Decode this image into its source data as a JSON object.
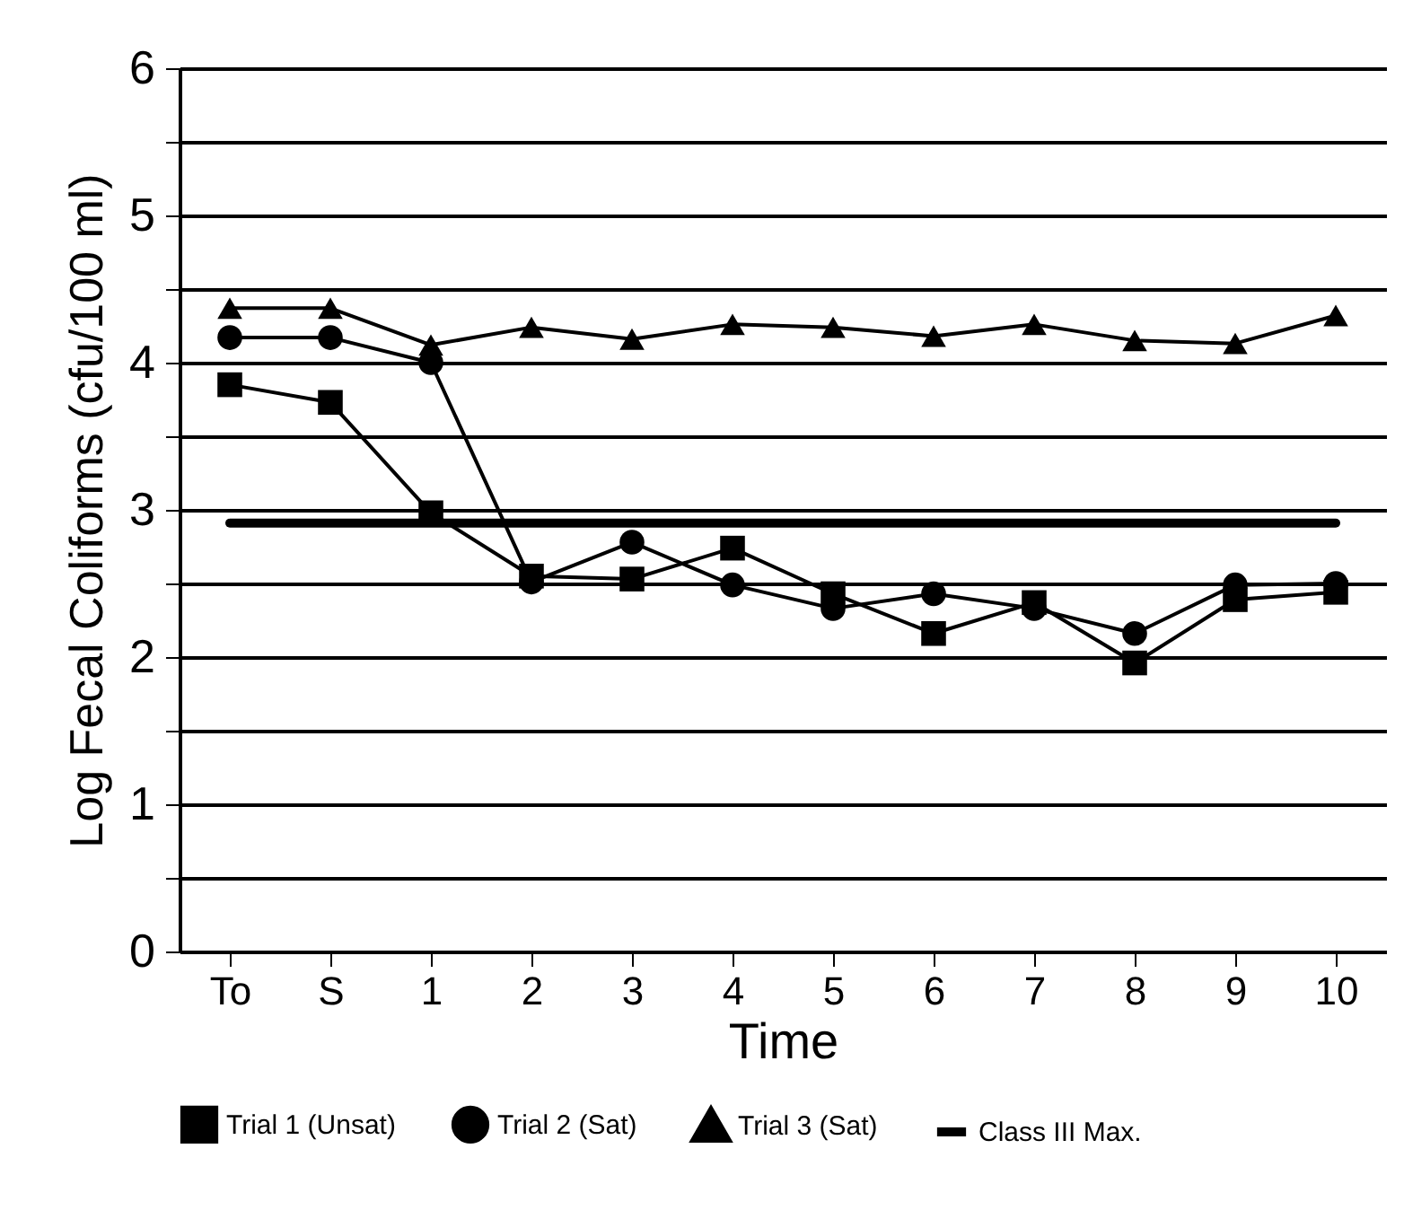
{
  "chart_data": {
    "type": "line",
    "xlabel": "Time",
    "ylabel": "Log Fecal Coliforms (cfu/100 ml)",
    "categories": [
      "To",
      "S",
      "1",
      "2",
      "3",
      "4",
      "5",
      "6",
      "7",
      "8",
      "9",
      "10"
    ],
    "series": [
      {
        "name": "Trial 1 (Unsat)",
        "color": "#000000",
        "marker": "square",
        "values": [
          3.85,
          3.73,
          2.98,
          2.55,
          2.53,
          2.74,
          2.43,
          2.16,
          2.37,
          1.96,
          2.39,
          2.44
        ]
      },
      {
        "name": "Trial 2 (Sat)",
        "color": "#000000",
        "marker": "circle",
        "values": [
          4.17,
          4.17,
          4.0,
          2.51,
          2.78,
          2.49,
          2.33,
          2.43,
          2.33,
          2.16,
          2.49,
          2.5
        ]
      },
      {
        "name": "Trial 3 (Sat)",
        "color": "#000000",
        "marker": "triangle",
        "values": [
          4.37,
          4.37,
          4.12,
          4.24,
          4.16,
          4.26,
          4.24,
          4.18,
          4.26,
          4.15,
          4.13,
          4.32
        ]
      }
    ],
    "ref_lines": [
      {
        "axis": "y",
        "value": 2.91,
        "label": "Class III Max.",
        "color": "#000000",
        "line_style": "solid"
      }
    ],
    "ylim": [
      0,
      6
    ],
    "yticks": [
      0,
      {
        "value": 0.5,
        "label": null
      },
      1,
      {
        "value": 1.5,
        "label": null
      },
      2,
      {
        "value": 2.5,
        "label": null
      },
      3,
      {
        "value": 3.5,
        "label": null
      },
      4,
      {
        "value": 4.5,
        "label": null
      },
      5,
      {
        "value": 5.5,
        "label": null
      },
      6
    ],
    "grid": "y",
    "legend": "bottom",
    "line_style": "solid"
  }
}
